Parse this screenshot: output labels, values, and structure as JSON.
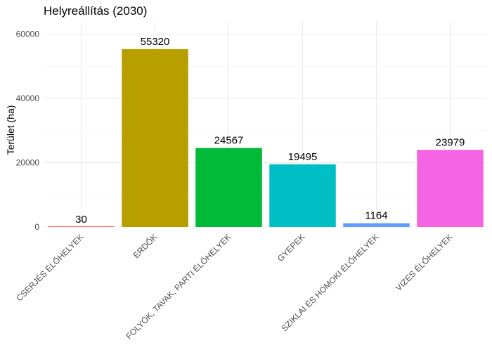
{
  "chart_data": {
    "type": "bar",
    "title": "Helyreállítás (2030)",
    "xlabel": "",
    "ylabel": "Terület (ha)",
    "ylim": [
      0,
      60000
    ],
    "yticks": [
      0,
      20000,
      40000,
      60000
    ],
    "ytick_labels": [
      "0",
      "20000",
      "40000",
      "60000"
    ],
    "grid": true,
    "legend": "none",
    "categories": [
      "CSERJÉS ÉLŐHELYEK",
      "ERDŐK",
      "FOLYÓK, TAVAK, PARTI ÉLŐHELYEK",
      "GYEPEK",
      "SZIKLAI ÉS HOMOKI ÉLŐHELYEK",
      "VIZES ÉLŐHELYEK"
    ],
    "values": [
      30,
      55320,
      24567,
      19495,
      1164,
      23979
    ],
    "data_labels": [
      "30",
      "55320",
      "24567",
      "19495",
      "1164",
      "23979"
    ],
    "colors": [
      "#F8766D",
      "#B79F00",
      "#00BA38",
      "#00BFC4",
      "#619CFF",
      "#F564E3"
    ]
  }
}
